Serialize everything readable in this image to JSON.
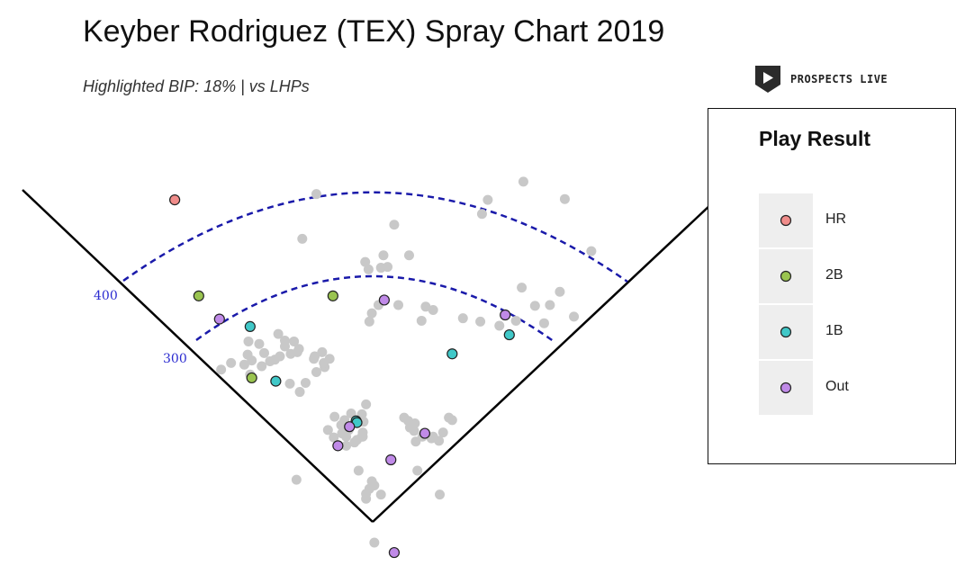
{
  "title": "Keyber Rodriguez (TEX) Spray Chart 2019",
  "subtitle": "Highlighted BIP: 18% | vs LHPs",
  "brand": {
    "name": "PROSPECTS LIVE",
    "logo_icon": "play-shield-icon"
  },
  "colors": {
    "background": "#ffffff",
    "foul_line": "#000000",
    "arc": "#1a1aaa",
    "distance_label": "#2a2ad0",
    "unhighlighted": "#c8c8c8",
    "HR": "#f08c8a",
    "2B": "#9ac450",
    "1B": "#40c8c8",
    "Out": "#c08ae8"
  },
  "legend": {
    "title": "Play Result",
    "items": [
      {
        "label": "HR",
        "color": "#f08c8a"
      },
      {
        "label": "2B",
        "color": "#9ac450"
      },
      {
        "label": "1B",
        "color": "#40c8c8"
      },
      {
        "label": "Out",
        "color": "#c08ae8"
      }
    ]
  },
  "chart_data": {
    "type": "scatter",
    "title": "Keyber Rodriguez (TEX) Spray Chart 2019",
    "subtitle": "Highlighted BIP: 18% | vs LHPs",
    "units": "ft",
    "distance_labels": [
      "400",
      "300"
    ],
    "arcs": [
      300,
      400
    ],
    "legend_title": "Play Result",
    "highlighted": [
      {
        "result": "HR",
        "x": -239,
        "y": 389
      },
      {
        "result": "2B",
        "x": -210,
        "y": 273
      },
      {
        "result": "2B",
        "x": -48,
        "y": 273
      },
      {
        "result": "2B",
        "x": -146,
        "y": 174
      },
      {
        "result": "1B",
        "x": -148,
        "y": 236
      },
      {
        "result": "1B",
        "x": -117,
        "y": 170
      },
      {
        "result": "1B",
        "x": -20,
        "y": 122
      },
      {
        "result": "1B",
        "x": -19,
        "y": 120
      },
      {
        "result": "1B",
        "x": 96,
        "y": 203
      },
      {
        "result": "1B",
        "x": 165,
        "y": 226
      },
      {
        "result": "Out",
        "x": -185,
        "y": 245
      },
      {
        "result": "Out",
        "x": 14,
        "y": 268
      },
      {
        "result": "Out",
        "x": -28,
        "y": 115
      },
      {
        "result": "Out",
        "x": -42,
        "y": 92
      },
      {
        "result": "Out",
        "x": 22,
        "y": 75
      },
      {
        "result": "Out",
        "x": 63,
        "y": 107
      },
      {
        "result": "Out",
        "x": 160,
        "y": 250
      },
      {
        "result": "Out",
        "x": 26,
        "y": -37
      }
    ],
    "other": [
      [
        182,
        411
      ],
      [
        -68,
        396
      ],
      [
        139,
        389
      ],
      [
        132,
        372
      ],
      [
        232,
        390
      ],
      [
        26,
        359
      ],
      [
        -85,
        342
      ],
      [
        264,
        327
      ],
      [
        -9,
        314
      ],
      [
        13,
        322
      ],
      [
        44,
        322
      ],
      [
        -5,
        305
      ],
      [
        18,
        308
      ],
      [
        10,
        307
      ],
      [
        180,
        283
      ],
      [
        226,
        278
      ],
      [
        214,
        262
      ],
      [
        31,
        262
      ],
      [
        7,
        262
      ],
      [
        64,
        260
      ],
      [
        -1,
        252
      ],
      [
        196,
        261
      ],
      [
        -4,
        242
      ],
      [
        73,
        256
      ],
      [
        59,
        243
      ],
      [
        109,
        246
      ],
      [
        130,
        242
      ],
      [
        173,
        243
      ],
      [
        153,
        237
      ],
      [
        243,
        248
      ],
      [
        207,
        240
      ],
      [
        -106,
        219
      ],
      [
        -114,
        227
      ],
      [
        -137,
        215
      ],
      [
        -150,
        218
      ],
      [
        -95,
        218
      ],
      [
        -106,
        212
      ],
      [
        -151,
        202
      ],
      [
        -99,
        203
      ],
      [
        -89,
        209
      ],
      [
        -171,
        192
      ],
      [
        -183,
        184
      ],
      [
        -155,
        190
      ],
      [
        -91,
        205
      ],
      [
        -61,
        205
      ],
      [
        -70,
        200
      ],
      [
        -58,
        187
      ],
      [
        -134,
        188
      ],
      [
        -148,
        178
      ],
      [
        -118,
        196
      ],
      [
        -112,
        200
      ],
      [
        -146,
        195
      ],
      [
        -71,
        197
      ],
      [
        -124,
        194
      ],
      [
        -131,
        204
      ],
      [
        -52,
        197
      ],
      [
        -59,
        192
      ],
      [
        -68,
        181
      ],
      [
        -100,
        167
      ],
      [
        -81,
        168
      ],
      [
        -88,
        157
      ],
      [
        -26,
        131
      ],
      [
        -34,
        123
      ],
      [
        -46,
        127
      ],
      [
        -38,
        117
      ],
      [
        -29,
        111
      ],
      [
        -37,
        107
      ],
      [
        -8,
        142
      ],
      [
        -13,
        130
      ],
      [
        -11,
        121
      ],
      [
        -32,
        92
      ],
      [
        -47,
        102
      ],
      [
        -32,
        103
      ],
      [
        -12,
        108
      ],
      [
        -12,
        103
      ],
      [
        -19,
        99
      ],
      [
        -22,
        96
      ],
      [
        38,
        126
      ],
      [
        43,
        122
      ],
      [
        45,
        114
      ],
      [
        51,
        119
      ],
      [
        50,
        110
      ],
      [
        52,
        97
      ],
      [
        60,
        103
      ],
      [
        85,
        108
      ],
      [
        71,
        101
      ],
      [
        73,
        103
      ],
      [
        80,
        98
      ],
      [
        92,
        126
      ],
      [
        96,
        123
      ],
      [
        54,
        62
      ],
      [
        -17,
        62
      ],
      [
        2,
        44
      ],
      [
        -4,
        40
      ],
      [
        -8,
        34
      ],
      [
        -8,
        28
      ],
      [
        10,
        33
      ],
      [
        -92,
        51
      ],
      [
        81,
        33
      ],
      [
        2,
        -25
      ],
      [
        -13,
        103
      ],
      [
        -54,
        111
      ],
      [
        -1,
        49
      ]
    ]
  }
}
